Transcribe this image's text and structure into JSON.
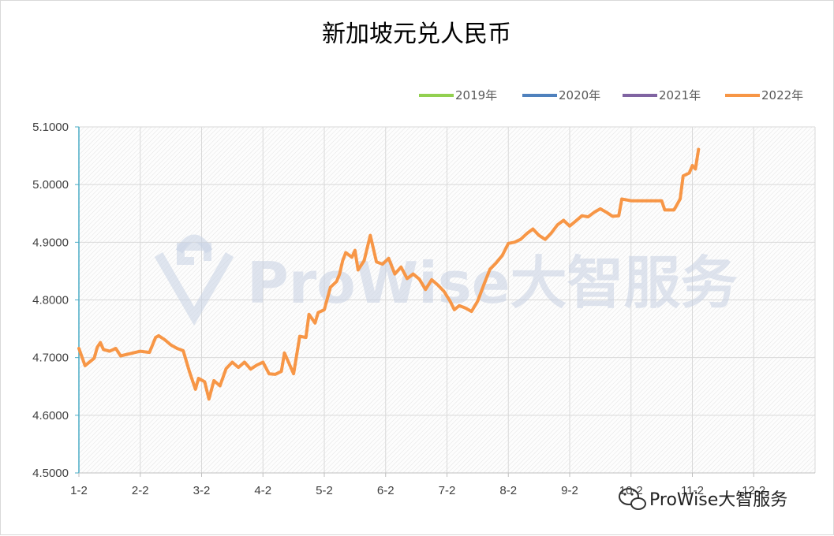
{
  "chart_data": {
    "type": "line",
    "title": "新加坡元兑人民币",
    "xlabel": "",
    "ylabel": "",
    "x_ticks": [
      "1-2",
      "2-2",
      "3-2",
      "4-2",
      "5-2",
      "6-2",
      "7-2",
      "8-2",
      "9-2",
      "10-2",
      "11-2",
      "12-2"
    ],
    "ylim": [
      4.5,
      5.1
    ],
    "y_ticks": [
      "4.5000",
      "4.6000",
      "4.7000",
      "4.8000",
      "4.9000",
      "5.0000",
      "5.1000"
    ],
    "grid": true,
    "legend_position": "top-right",
    "series": [
      {
        "name": "2019年",
        "color": "#92d050",
        "values": []
      },
      {
        "name": "2020年",
        "color": "#4f81bd",
        "values": []
      },
      {
        "name": "2021年",
        "color": "#8064a2",
        "values": []
      },
      {
        "name": "2022年",
        "color": "#f79646",
        "values": [
          [
            0.0,
            4.716
          ],
          [
            0.1,
            4.686
          ],
          [
            0.25,
            4.699
          ],
          [
            0.3,
            4.718
          ],
          [
            0.35,
            4.726
          ],
          [
            0.4,
            4.714
          ],
          [
            0.5,
            4.711
          ],
          [
            0.6,
            4.716
          ],
          [
            0.68,
            4.703
          ],
          [
            1.0,
            4.711
          ],
          [
            1.15,
            4.709
          ],
          [
            1.25,
            4.735
          ],
          [
            1.3,
            4.738
          ],
          [
            1.4,
            4.731
          ],
          [
            1.5,
            4.722
          ],
          [
            1.6,
            4.716
          ],
          [
            1.7,
            4.712
          ],
          [
            1.8,
            4.676
          ],
          [
            1.9,
            4.645
          ],
          [
            1.95,
            4.664
          ],
          [
            2.05,
            4.658
          ],
          [
            2.12,
            4.628
          ],
          [
            2.2,
            4.66
          ],
          [
            2.3,
            4.651
          ],
          [
            2.4,
            4.681
          ],
          [
            2.5,
            4.692
          ],
          [
            2.6,
            4.683
          ],
          [
            2.7,
            4.692
          ],
          [
            2.8,
            4.68
          ],
          [
            2.9,
            4.687
          ],
          [
            3.0,
            4.692
          ],
          [
            3.1,
            4.672
          ],
          [
            3.2,
            4.671
          ],
          [
            3.3,
            4.676
          ],
          [
            3.35,
            4.708
          ],
          [
            3.5,
            4.672
          ],
          [
            3.6,
            4.737
          ],
          [
            3.7,
            4.735
          ],
          [
            3.75,
            4.775
          ],
          [
            3.85,
            4.76
          ],
          [
            3.9,
            4.778
          ],
          [
            4.0,
            4.783
          ],
          [
            4.1,
            4.822
          ],
          [
            4.2,
            4.832
          ],
          [
            4.25,
            4.845
          ],
          [
            4.3,
            4.868
          ],
          [
            4.35,
            4.882
          ],
          [
            4.45,
            4.874
          ],
          [
            4.5,
            4.886
          ],
          [
            4.55,
            4.852
          ],
          [
            4.65,
            4.868
          ],
          [
            4.75,
            4.912
          ],
          [
            4.85,
            4.866
          ],
          [
            4.95,
            4.862
          ],
          [
            5.05,
            4.872
          ],
          [
            5.15,
            4.845
          ],
          [
            5.25,
            4.857
          ],
          [
            5.35,
            4.837
          ],
          [
            5.45,
            4.845
          ],
          [
            5.55,
            4.836
          ],
          [
            5.65,
            4.818
          ],
          [
            5.75,
            4.835
          ],
          [
            5.85,
            4.826
          ],
          [
            5.95,
            4.815
          ],
          [
            6.05,
            4.798
          ],
          [
            6.12,
            4.783
          ],
          [
            6.2,
            4.79
          ],
          [
            6.3,
            4.786
          ],
          [
            6.4,
            4.78
          ],
          [
            6.5,
            4.798
          ],
          [
            6.6,
            4.826
          ],
          [
            6.7,
            4.853
          ],
          [
            6.8,
            4.864
          ],
          [
            6.9,
            4.877
          ],
          [
            7.0,
            4.898
          ],
          [
            7.1,
            4.9
          ],
          [
            7.2,
            4.905
          ],
          [
            7.3,
            4.915
          ],
          [
            7.4,
            4.923
          ],
          [
            7.5,
            4.912
          ],
          [
            7.6,
            4.905
          ],
          [
            7.7,
            4.916
          ],
          [
            7.8,
            4.93
          ],
          [
            7.9,
            4.938
          ],
          [
            8.0,
            4.928
          ],
          [
            8.1,
            4.937
          ],
          [
            8.2,
            4.946
          ],
          [
            8.3,
            4.944
          ],
          [
            8.4,
            4.952
          ],
          [
            8.5,
            4.958
          ],
          [
            8.6,
            4.952
          ],
          [
            8.7,
            4.945
          ],
          [
            8.8,
            4.946
          ],
          [
            8.85,
            4.975
          ],
          [
            9.0,
            4.972
          ],
          [
            9.2,
            4.972
          ],
          [
            9.4,
            4.972
          ],
          [
            9.5,
            4.972
          ],
          [
            9.55,
            4.956
          ],
          [
            9.7,
            4.956
          ],
          [
            9.8,
            4.975
          ],
          [
            9.85,
            5.015
          ],
          [
            9.95,
            5.02
          ],
          [
            10.0,
            5.033
          ],
          [
            10.05,
            5.027
          ],
          [
            10.1,
            5.061
          ]
        ]
      }
    ]
  },
  "watermark": {
    "text": "ProWise大智服务"
  },
  "wechat_badge": {
    "text": "ProWise大智服务"
  }
}
